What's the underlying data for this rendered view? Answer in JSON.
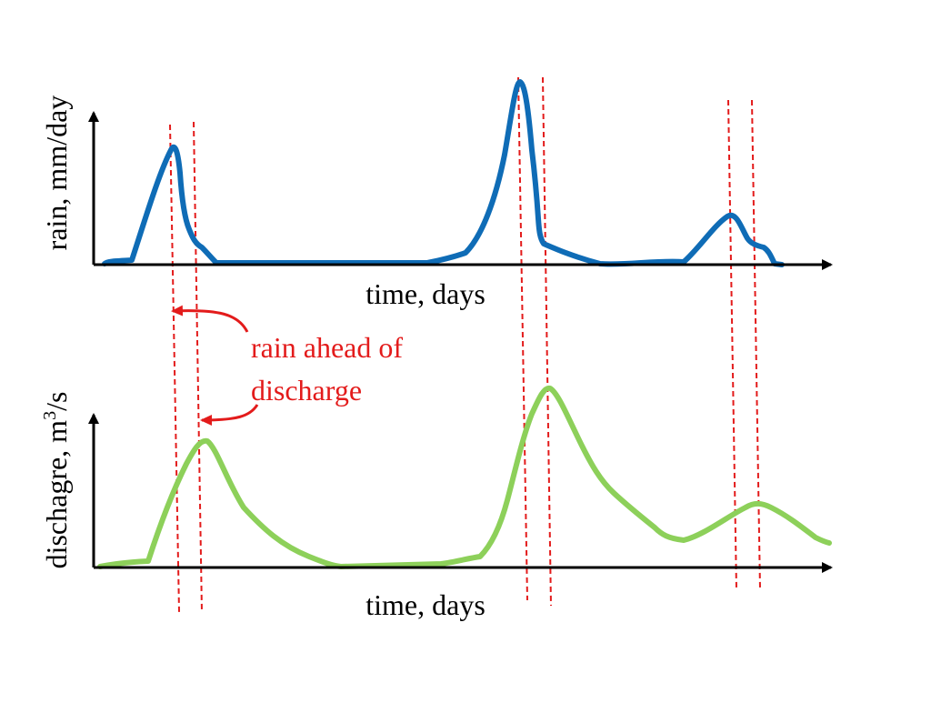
{
  "colors": {
    "rain_series": "#0f6cb6",
    "discharge_series": "#8dd05a",
    "guide_lines": "#e31b1b",
    "annotation": "#e31b1b",
    "axes": "#000000"
  },
  "top_panel": {
    "ylabel": "rain, mm/day",
    "xlabel": "time, days"
  },
  "bottom_panel": {
    "ylabel_main": "dischagre, m",
    "ylabel_sup": "3",
    "ylabel_tail": "/s",
    "xlabel": "time, days"
  },
  "annotation": {
    "line1": "rain ahead of",
    "line2": "discharge"
  }
}
